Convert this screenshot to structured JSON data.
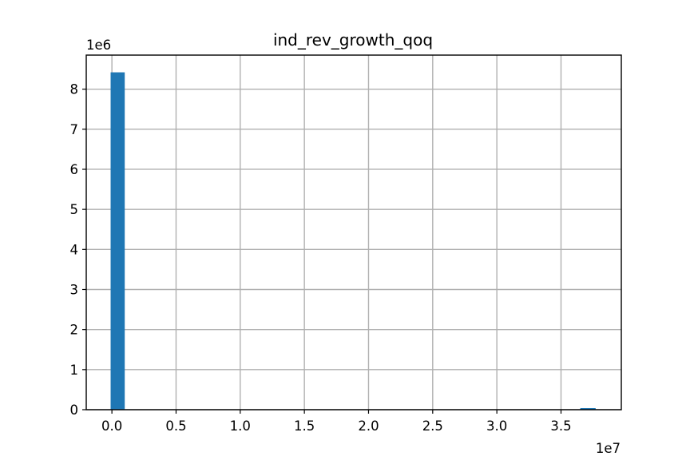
{
  "chart_data": {
    "type": "bar",
    "title": "ind_rev_growth_qoq",
    "xlabel": "",
    "ylabel": "",
    "x_offset_label": "1e7",
    "y_offset_label": "1e6",
    "x_scale": 10000000,
    "y_scale": 1000000,
    "xlim": [
      -0.2,
      3.97
    ],
    "ylim": [
      0,
      8.85
    ],
    "x_ticks": [
      0.0,
      0.5,
      1.0,
      1.5,
      2.0,
      2.5,
      3.0,
      3.5
    ],
    "x_tick_labels": [
      "0.0",
      "0.5",
      "1.0",
      "1.5",
      "2.0",
      "2.5",
      "3.0",
      "3.5"
    ],
    "y_ticks": [
      0,
      1,
      2,
      3,
      4,
      5,
      6,
      7,
      8
    ],
    "y_tick_labels": [
      "0",
      "1",
      "2",
      "3",
      "4",
      "5",
      "6",
      "7",
      "8"
    ],
    "grid": true,
    "bar_color": "#1f77b4",
    "bins": [
      {
        "start": -0.01,
        "end": 0.1,
        "count": 8.42
      },
      {
        "start": 3.65,
        "end": 3.77,
        "count": 0.04
      }
    ]
  }
}
